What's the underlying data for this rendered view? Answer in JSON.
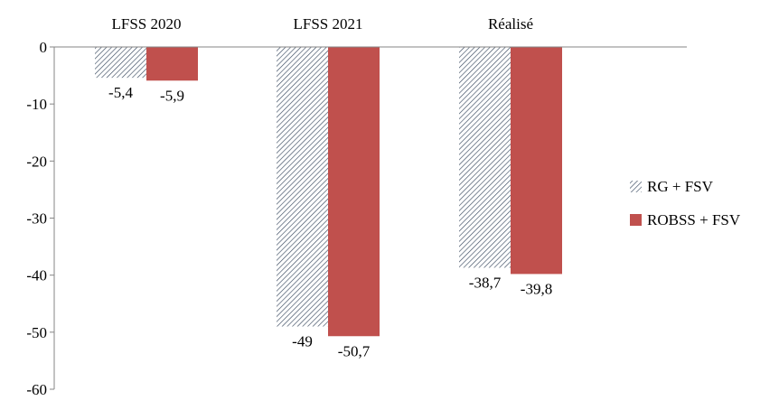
{
  "chart_data": {
    "type": "bar",
    "categories": [
      "LFSS 2020",
      "LFSS 2021",
      "Réalisé"
    ],
    "series": [
      {
        "name": "RG + FSV",
        "values": [
          -5.4,
          -49,
          -38.7
        ],
        "labels": [
          "-5,4",
          "-49",
          "-38,7"
        ],
        "pattern": "hatched",
        "color": "#2f3f55"
      },
      {
        "name": "ROBSS + FSV",
        "values": [
          -5.9,
          -50.7,
          -39.8
        ],
        "labels": [
          "-5,9",
          "-50,7",
          "-39,8"
        ],
        "pattern": "solid",
        "color": "#c0504d"
      }
    ],
    "ylim": [
      -60,
      0
    ],
    "yticks": [
      0,
      -10,
      -20,
      -30,
      -40,
      -50,
      -60
    ],
    "category_axis_position": "top",
    "legend": "right",
    "grid": false
  }
}
